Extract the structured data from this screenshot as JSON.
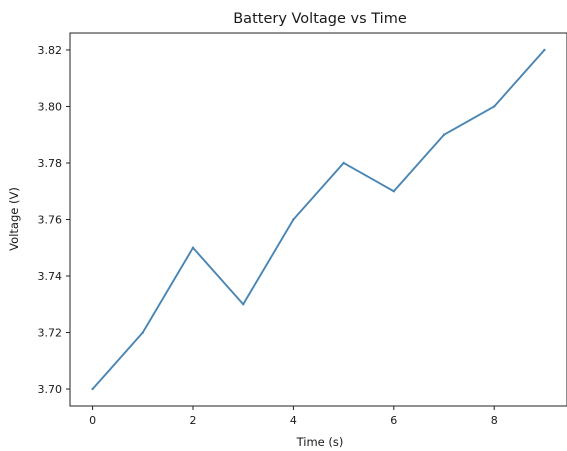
{
  "chart_data": {
    "type": "line",
    "title": "Battery Voltage vs Time",
    "xlabel": "Time (s)",
    "ylabel": "Voltage (V)",
    "x": [
      0,
      1,
      2,
      3,
      4,
      5,
      6,
      7,
      8,
      9
    ],
    "series": [
      {
        "values": [
          3.7,
          3.72,
          3.75,
          3.73,
          3.76,
          3.78,
          3.77,
          3.79,
          3.8,
          3.82
        ],
        "color": "#4a86b4"
      }
    ],
    "xlim": [
      -0.45,
      9.45
    ],
    "ylim": [
      3.694,
      3.826
    ],
    "xticks": [
      0,
      2,
      4,
      6,
      8
    ],
    "xtick_labels": [
      "0",
      "2",
      "4",
      "6",
      "8"
    ],
    "yticks": [
      3.7,
      3.72,
      3.74,
      3.76,
      3.78,
      3.8,
      3.82
    ],
    "ytick_labels": [
      "3.70",
      "3.72",
      "3.74",
      "3.76",
      "3.78",
      "3.80",
      "3.82"
    ],
    "grid": false,
    "legend": "none"
  }
}
